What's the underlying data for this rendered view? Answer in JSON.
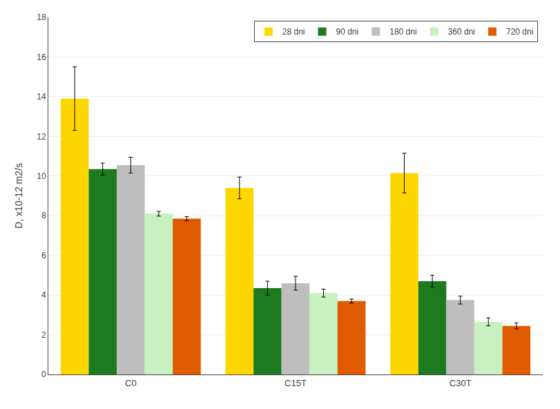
{
  "chart_data": {
    "type": "bar",
    "categories": [
      "C0",
      "C15T",
      "C30T"
    ],
    "series": [
      {
        "name": "28 dni",
        "color": "#FFD700",
        "values": [
          13.9,
          9.4,
          10.15
        ],
        "errors": [
          1.6,
          0.55,
          1.0
        ]
      },
      {
        "name": "90 dni",
        "color": "#1E7A1E",
        "values": [
          10.35,
          4.35,
          4.7
        ],
        "errors": [
          0.3,
          0.35,
          0.3
        ]
      },
      {
        "name": "180 dni",
        "color": "#BEBEBE",
        "values": [
          10.55,
          4.6,
          3.75
        ],
        "errors": [
          0.4,
          0.35,
          0.2
        ]
      },
      {
        "name": "360 dni",
        "color": "#C8F0C0",
        "values": [
          8.1,
          4.1,
          2.65
        ],
        "errors": [
          0.12,
          0.2,
          0.2
        ]
      },
      {
        "name": "720 dni",
        "color": "#E05A00",
        "values": [
          7.85,
          3.7,
          2.45
        ],
        "errors": [
          0.1,
          0.1,
          0.15
        ]
      }
    ],
    "ylabel": "D, x10-12 m2/s",
    "ylim": [
      0,
      18
    ],
    "yticks": [
      0,
      2,
      4,
      6,
      8,
      10,
      12,
      14,
      16,
      18
    ],
    "grid": true,
    "legend": "upper right"
  }
}
